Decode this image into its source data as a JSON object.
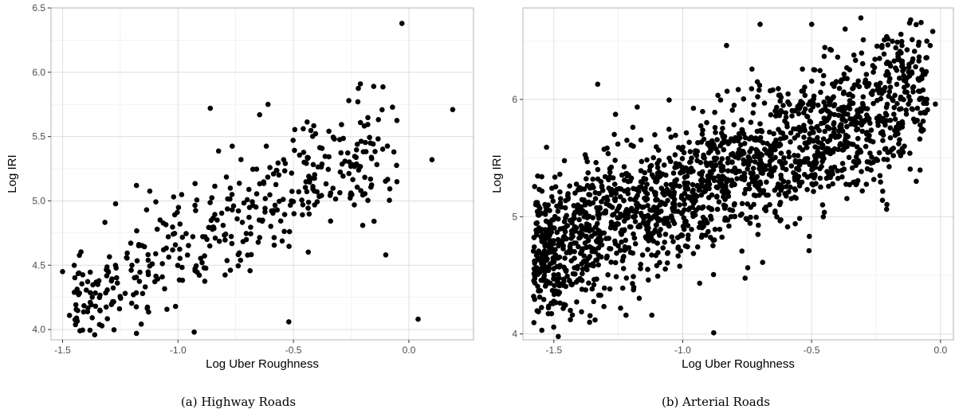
{
  "charts": [
    {
      "type": "scatter",
      "caption": "(a) Highway Roads",
      "xlabel": "Log Uber Roughness",
      "ylabel": "Log IRI",
      "xlim": [
        -1.55,
        0.28
      ],
      "ylim": [
        3.92,
        6.5
      ],
      "xticks": [
        -1.5,
        -1.0,
        -0.5,
        0.0
      ],
      "xtick_labels": [
        "-1.5",
        "-1.0",
        "-0.5",
        "0.0"
      ],
      "yticks": [
        4.0,
        4.5,
        5.0,
        5.5,
        6.0,
        6.5
      ],
      "ytick_labels": [
        "4.0",
        "4.5",
        "5.0",
        "5.5",
        "6.0",
        "6.5"
      ],
      "xminor": [
        -1.25,
        -0.75,
        -0.25
      ],
      "yminor": [
        4.25,
        4.75,
        5.25,
        5.75,
        6.25
      ],
      "grid": true,
      "point_color": "#000000",
      "n_points": 420,
      "trend": {
        "slope": 0.9,
        "intercept": 5.52,
        "noise": 0.23
      },
      "x_range": [
        -1.45,
        -0.05
      ],
      "outliers": [
        {
          "x": -0.03,
          "y": 6.38
        },
        {
          "x": 0.19,
          "y": 5.71
        },
        {
          "x": 0.1,
          "y": 5.32
        },
        {
          "x": 0.04,
          "y": 4.08
        },
        {
          "x": -1.47,
          "y": 4.11
        },
        {
          "x": -0.52,
          "y": 4.06
        },
        {
          "x": -0.93,
          "y": 3.98
        },
        {
          "x": -1.18,
          "y": 3.97
        },
        {
          "x": -0.86,
          "y": 5.72
        },
        {
          "x": -1.18,
          "y": 5.12
        },
        {
          "x": -0.21,
          "y": 5.91
        },
        {
          "x": -0.1,
          "y": 4.58
        },
        {
          "x": -0.2,
          "y": 4.81
        },
        {
          "x": -1.5,
          "y": 4.45
        },
        {
          "x": -0.61,
          "y": 5.75
        },
        {
          "x": -0.26,
          "y": 5.78
        }
      ]
    },
    {
      "type": "scatter",
      "caption": "(b) Arterial Roads",
      "xlabel": "Log Uber Roughness",
      "ylabel": "Log IRI",
      "xlim": [
        -1.62,
        0.05
      ],
      "ylim": [
        3.95,
        6.78
      ],
      "xticks": [
        -1.5,
        -1.0,
        -0.5,
        0.0
      ],
      "xtick_labels": [
        "-1.5",
        "-1.0",
        "-0.5",
        "0.0"
      ],
      "yticks": [
        4,
        5,
        6
      ],
      "ytick_labels": [
        "4",
        "5",
        "6"
      ],
      "xminor": [
        -1.25,
        -0.75,
        -0.25
      ],
      "yminor": [
        4.5,
        5.5,
        6.5
      ],
      "grid": true,
      "point_color": "#000000",
      "n_points": 1900,
      "trend": {
        "slope": 0.95,
        "intercept": 6.15,
        "noise": 0.3
      },
      "x_range": [
        -1.58,
        -0.05
      ],
      "outliers": [
        {
          "x": -0.88,
          "y": 4.01
        },
        {
          "x": -1.34,
          "y": 4.12
        },
        {
          "x": -1.12,
          "y": 4.16
        },
        {
          "x": -1.22,
          "y": 4.16
        },
        {
          "x": -1.56,
          "y": 4.19
        },
        {
          "x": -0.03,
          "y": 6.58
        },
        {
          "x": -0.04,
          "y": 6.46
        },
        {
          "x": -0.02,
          "y": 5.96
        },
        {
          "x": -0.7,
          "y": 6.64
        },
        {
          "x": -0.5,
          "y": 6.64
        },
        {
          "x": -0.37,
          "y": 6.6
        },
        {
          "x": -0.83,
          "y": 6.46
        },
        {
          "x": -1.33,
          "y": 6.13
        },
        {
          "x": -0.69,
          "y": 4.61
        },
        {
          "x": -0.51,
          "y": 4.71
        },
        {
          "x": -0.16,
          "y": 6.34
        }
      ]
    }
  ]
}
